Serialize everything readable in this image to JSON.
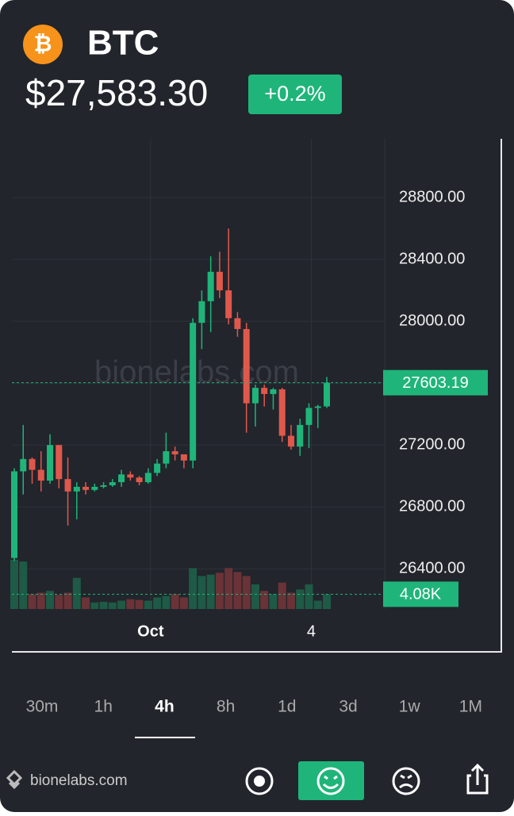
{
  "header": {
    "coin_symbol": "₿",
    "ticker": "BTC",
    "price": "$27,583.30",
    "change": "+0.2%"
  },
  "chart_data": {
    "type": "candlestick",
    "watermark": "bionelabs.com",
    "categories": [
      null,
      null,
      null,
      null,
      null,
      null,
      null,
      null,
      null,
      null,
      null,
      null,
      null,
      null,
      null,
      "Oct",
      null,
      null,
      null,
      null,
      null,
      null,
      null,
      null,
      null,
      null,
      null,
      null,
      null,
      null,
      null,
      null,
      null,
      "4",
      null,
      null
    ],
    "open": [
      26470,
      27030,
      27110,
      27040,
      26970,
      27200,
      26980,
      26900,
      26930,
      26910,
      26930,
      26940,
      26960,
      27010,
      26990,
      26960,
      27020,
      27080,
      27160,
      27140,
      27100,
      27990,
      28130,
      28320,
      28200,
      28020,
      27950,
      27470,
      27570,
      27530,
      27560,
      27260,
      27190,
      27330,
      27440,
      27450
    ],
    "high": [
      27050,
      27330,
      27120,
      27160,
      27270,
      27200,
      27120,
      26960,
      26960,
      26950,
      26960,
      26980,
      27040,
      27030,
      27000,
      27050,
      27110,
      27280,
      27190,
      27140,
      28020,
      28200,
      28420,
      28450,
      28600,
      28060,
      27990,
      27590,
      27590,
      27570,
      27570,
      27330,
      27370,
      27470,
      27460,
      27640
    ],
    "low": [
      26450,
      26880,
      26950,
      26900,
      26950,
      26920,
      26680,
      26720,
      26880,
      26900,
      26920,
      26930,
      26930,
      26970,
      26940,
      26950,
      27000,
      27050,
      27100,
      27050,
      27050,
      27820,
      27930,
      28150,
      27980,
      27900,
      27280,
      27320,
      27450,
      27430,
      27220,
      27170,
      27130,
      27180,
      27310,
      27440
    ],
    "close": [
      27030,
      27110,
      27040,
      26970,
      27200,
      26980,
      26900,
      26930,
      26910,
      26930,
      26940,
      26960,
      27010,
      26990,
      26960,
      27020,
      27080,
      27160,
      27140,
      27100,
      27990,
      28130,
      28320,
      28200,
      28020,
      27950,
      27470,
      27570,
      27530,
      27560,
      27260,
      27190,
      27330,
      27440,
      27450,
      27603.19
    ],
    "volume": [
      13600,
      13100,
      4100,
      4500,
      5000,
      3900,
      4500,
      8600,
      3200,
      1800,
      2000,
      1800,
      2300,
      2700,
      2500,
      2300,
      3200,
      3600,
      4100,
      3200,
      11300,
      9100,
      9500,
      10000,
      11300,
      10200,
      9100,
      6800,
      5000,
      4100,
      7300,
      4500,
      5400,
      6800,
      2300,
      4080
    ],
    "ylim": [
      26140,
      29180
    ],
    "yticks": [
      {
        "value": 26400,
        "label": "26400.00"
      },
      {
        "value": 26800,
        "label": "26800.00"
      },
      {
        "value": 27200,
        "label": "27200.00"
      },
      {
        "value": 27600,
        "label": "27600.00"
      },
      {
        "value": 28000,
        "label": "28000.00"
      },
      {
        "value": 28400,
        "label": "28400.00"
      },
      {
        "value": 28800,
        "label": "28800.00"
      }
    ],
    "last_price": 27603.19,
    "volume_lim": [
      0,
      14000
    ],
    "volume_label": {
      "value": 4080,
      "label": "4.08K"
    },
    "up_color": "#1fb57a",
    "down_color": "#e0584c",
    "grid": true
  },
  "timeframes": [
    "30m",
    "1h",
    "4h",
    "8h",
    "1d",
    "3d",
    "1w",
    "1M"
  ],
  "active_timeframe": 2,
  "footer": {
    "brand": "bionelabs.com"
  }
}
